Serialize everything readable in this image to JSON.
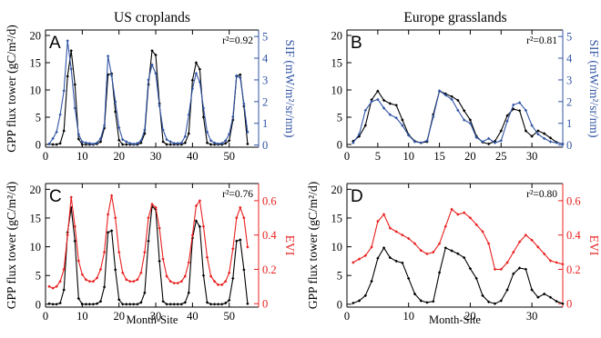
{
  "columns": {
    "left_title": "US croplands",
    "right_title": "Europe grasslands"
  },
  "colors": {
    "gpp": "#000000",
    "sif": "#3255a4",
    "evi": "#e8201f"
  },
  "chart_data": [
    {
      "type": "line",
      "panel": "A",
      "r2_text": "r²=0.92",
      "xlabel": "",
      "ylabel": "GPP flux tower (gC/m²/d)",
      "y2label": "SIF (mW/m²/sr/nm)",
      "xlim": [
        0,
        58
      ],
      "ylim": [
        -0.5,
        21
      ],
      "y2lim": [
        -0.1,
        5.3
      ],
      "xticks": [
        0,
        10,
        20,
        30,
        40,
        50
      ],
      "yticks": [
        0,
        5,
        10,
        15,
        20
      ],
      "y2ticks": [
        0,
        1,
        2,
        3,
        4,
        5
      ],
      "series": [
        {
          "axis": "left",
          "color": "#000000",
          "y": [
            0.1,
            0,
            0,
            0.2,
            2.5,
            12.5,
            17.2,
            11,
            1,
            0,
            0,
            0,
            0,
            0.1,
            0.5,
            3,
            12.8,
            13,
            6,
            0.8,
            0,
            0,
            0,
            0,
            0,
            0.3,
            2,
            11,
            17.2,
            16.4,
            7.5,
            0.5,
            0,
            0,
            0,
            0,
            0,
            0.3,
            2,
            11.8,
            15,
            13.8,
            5,
            0.3,
            0,
            0,
            0,
            0,
            0.2,
            0.7,
            4.5,
            12.5,
            12.8,
            7,
            0.1
          ]
        },
        {
          "axis": "right",
          "color": "#3255a4",
          "y": [
            0.05,
            0.3,
            0.6,
            1.4,
            2.5,
            4.8,
            3.5,
            1.7,
            0.5,
            0.15,
            0.1,
            0.08,
            0.05,
            0.1,
            0.3,
            0.9,
            4.1,
            3.2,
            2,
            0.8,
            0.25,
            0.15,
            0.08,
            0.05,
            0.08,
            0.2,
            0.7,
            3.0,
            3.7,
            3.3,
            1.8,
            0.7,
            0.25,
            0.15,
            0.08,
            0.08,
            0.1,
            0.4,
            1.4,
            2.6,
            3.3,
            2.9,
            1.7,
            0.6,
            0.2,
            0.1,
            0.06,
            0.08,
            0.2,
            0.5,
            1.3,
            3.2,
            3.1,
            1.9,
            0.6
          ]
        }
      ]
    },
    {
      "type": "line",
      "panel": "B",
      "r2_text": "r²=0.81",
      "xlabel": "",
      "ylabel": "",
      "y2label": "SIF (mW/m²/sr/nm)",
      "xlim": [
        0,
        35
      ],
      "ylim": [
        -0.5,
        21
      ],
      "y2lim": [
        -0.1,
        5.3
      ],
      "xticks": [
        0,
        5,
        10,
        15,
        20,
        25,
        30
      ],
      "yticks": [
        0,
        5,
        10,
        15,
        20
      ],
      "y2ticks": [
        0,
        1,
        2,
        3,
        4,
        5
      ],
      "series": [
        {
          "axis": "left",
          "color": "#000000",
          "y": [
            0.6,
            1.5,
            3.5,
            8.2,
            9.8,
            8.1,
            7.5,
            7.2,
            4.5,
            1.8,
            0.6,
            0.3,
            0.5,
            5.5,
            9.8,
            9.3,
            8.8,
            8.1,
            6.2,
            4.5,
            1.5,
            0.4,
            0.1,
            0.6,
            2.5,
            5.3,
            6.5,
            6.2,
            2.5,
            1.5,
            2.5,
            2,
            1.2,
            0.4,
            0.1
          ]
        },
        {
          "axis": "right",
          "color": "#3255a4",
          "y": [
            0.1,
            0.5,
            1.6,
            2.0,
            2.1,
            1.7,
            1.4,
            1.25,
            0.9,
            0.45,
            0.15,
            0.1,
            0.2,
            1.3,
            2.5,
            2.3,
            2.1,
            1.6,
            1.15,
            1.0,
            0.35,
            0.15,
            0.3,
            0.1,
            0.2,
            1.1,
            1.85,
            1.95,
            1.6,
            0.9,
            0.5,
            0.3,
            0.15,
            0.1,
            0.05
          ]
        }
      ]
    },
    {
      "type": "line",
      "panel": "C",
      "r2_text": "r²=0.76",
      "xlabel": "Month-Site",
      "ylabel": "GPP flux tower (gC/m²/d)",
      "y2label": "EVI",
      "xlim": [
        0,
        58
      ],
      "ylim": [
        -0.5,
        21
      ],
      "y2lim": [
        -0.02,
        0.7
      ],
      "xticks": [
        0,
        10,
        20,
        30,
        40,
        50
      ],
      "yticks": [
        0,
        5,
        10,
        15,
        20
      ],
      "y2ticks": [
        0.0,
        0.2,
        0.4,
        0.6
      ],
      "series": [
        {
          "axis": "left",
          "color": "#000000",
          "y": [
            0.1,
            0,
            0,
            0.2,
            2.5,
            12.5,
            16.8,
            11,
            1,
            0,
            0,
            0,
            0,
            0.1,
            0.5,
            3,
            12.5,
            12.8,
            6,
            0.8,
            0,
            0,
            0,
            0,
            0,
            0.3,
            2,
            11,
            17,
            16.5,
            7.5,
            0.5,
            0,
            0,
            0,
            0,
            0,
            0.3,
            2,
            11.5,
            14.5,
            13.5,
            5,
            0.3,
            0,
            0,
            0,
            0,
            0.2,
            0.7,
            4.5,
            11,
            11.2,
            6,
            0.1
          ]
        },
        {
          "axis": "right",
          "color": "#e8201f",
          "y": [
            0.1,
            0.09,
            0.1,
            0.13,
            0.2,
            0.4,
            0.62,
            0.45,
            0.25,
            0.17,
            0.14,
            0.13,
            0.13,
            0.15,
            0.2,
            0.3,
            0.52,
            0.63,
            0.5,
            0.3,
            0.18,
            0.14,
            0.13,
            0.13,
            0.14,
            0.18,
            0.3,
            0.5,
            0.58,
            0.56,
            0.44,
            0.26,
            0.16,
            0.13,
            0.12,
            0.12,
            0.13,
            0.16,
            0.24,
            0.4,
            0.57,
            0.6,
            0.45,
            0.27,
            0.16,
            0.13,
            0.11,
            0.11,
            0.13,
            0.18,
            0.32,
            0.5,
            0.56,
            0.5,
            0.33
          ]
        }
      ]
    },
    {
      "type": "line",
      "panel": "D",
      "r2_text": "r²=0.80",
      "xlabel": "Month-Site",
      "ylabel": "GPP flux tower (gC/m²/d)",
      "y2label": "EVI",
      "xlim": [
        0,
        35
      ],
      "ylim": [
        -0.5,
        21
      ],
      "y2lim": [
        -0.02,
        0.7
      ],
      "xticks": [
        0,
        10,
        20,
        30
      ],
      "yticks": [
        0,
        5,
        10,
        15,
        20
      ],
      "y2ticks": [
        0.0,
        0.2,
        0.4,
        0.6
      ],
      "series": [
        {
          "axis": "left",
          "color": "#000000",
          "y": [
            0.2,
            0.6,
            1.5,
            4,
            8,
            9.8,
            8.1,
            7.5,
            7.2,
            4.5,
            1.8,
            0.6,
            0.3,
            0.5,
            5.5,
            9.8,
            9.3,
            8.8,
            8.1,
            6.2,
            4.5,
            1.5,
            0.4,
            0.1,
            0.6,
            2.5,
            5.3,
            6.3,
            6.1,
            2.5,
            1.2,
            1.8,
            1.2,
            0.5,
            0.1
          ]
        },
        {
          "axis": "right",
          "color": "#e8201f",
          "y": [
            0.24,
            0.26,
            0.28,
            0.33,
            0.48,
            0.52,
            0.44,
            0.42,
            0.4,
            0.38,
            0.35,
            0.31,
            0.29,
            0.3,
            0.35,
            0.45,
            0.55,
            0.52,
            0.53,
            0.5,
            0.46,
            0.42,
            0.35,
            0.2,
            0.2,
            0.24,
            0.3,
            0.36,
            0.4,
            0.37,
            0.33,
            0.29,
            0.25,
            0.24,
            0.23
          ]
        }
      ]
    }
  ]
}
